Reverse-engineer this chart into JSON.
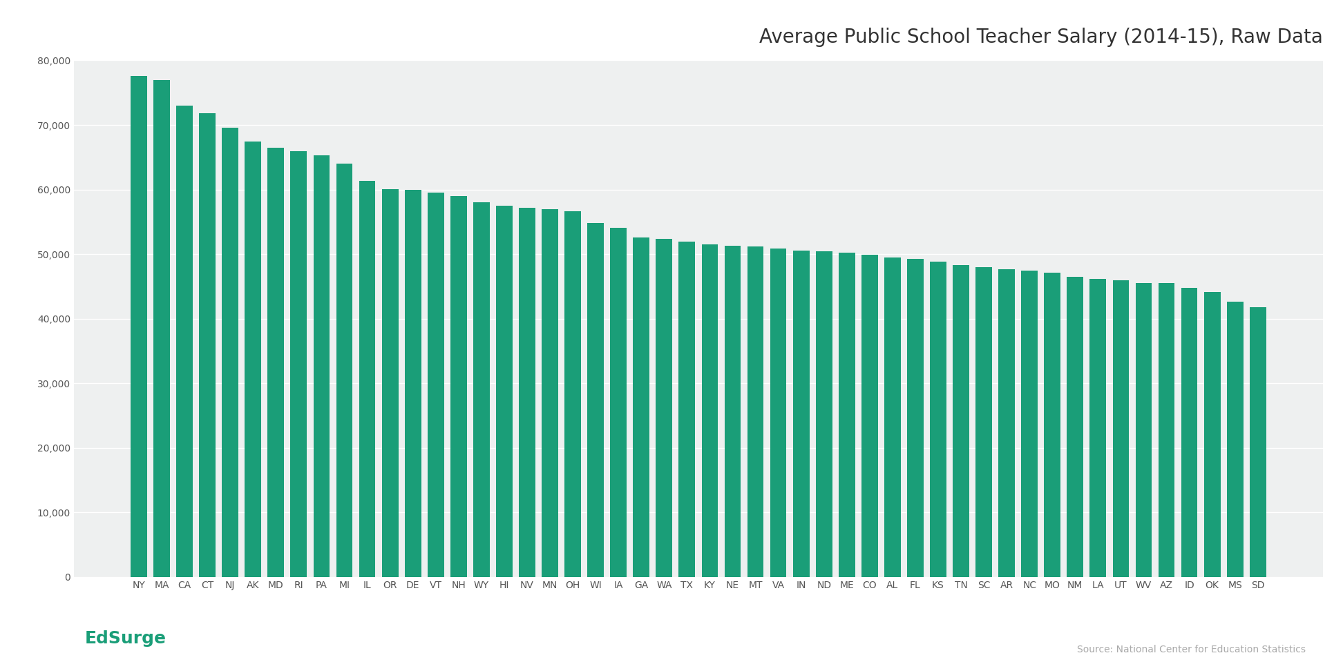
{
  "title": "Average Public School Teacher Salary (2014-15), Raw Data",
  "source_text": "Source: National Center for Education Statistics",
  "bar_color": "#1a9e78",
  "plot_bg_color": "#eef0f0",
  "fig_bg_color": "#ffffff",
  "categories": [
    "NY",
    "MA",
    "CA",
    "CT",
    "NJ",
    "AK",
    "MD",
    "RI",
    "PA",
    "MI",
    "IL",
    "OR",
    "DE",
    "VT",
    "NH",
    "WY",
    "HI",
    "NV",
    "MN",
    "OH",
    "WI",
    "IA",
    "GA",
    "WA",
    "TX",
    "KY",
    "NE",
    "MT",
    "VA",
    "IN",
    "ND",
    "ME",
    "CO",
    "AL",
    "FL",
    "KS",
    "TN",
    "SC",
    "AR",
    "NC",
    "MO",
    "NM",
    "LA",
    "UT",
    "WV",
    "AZ",
    "ID",
    "OK",
    "MS",
    "SD"
  ],
  "values": [
    77628,
    76981,
    72972,
    71842,
    69623,
    67443,
    66441,
    65985,
    65285,
    63970,
    61342,
    60100,
    59930,
    59556,
    58948,
    58014,
    57508,
    57135,
    57013,
    56616,
    54793,
    54125,
    52619,
    52373,
    51890,
    51469,
    51337,
    51165,
    50837,
    50548,
    50396,
    50190,
    49957,
    49490,
    49227,
    48881,
    48268,
    48000,
    47717,
    47413,
    47132,
    46490,
    46154,
    45940,
    45497,
    45477,
    44737,
    44128,
    42685,
    41838
  ],
  "ylim": [
    0,
    80000
  ],
  "yticks": [
    0,
    10000,
    20000,
    30000,
    40000,
    50000,
    60000,
    70000,
    80000
  ],
  "title_fontsize": 20,
  "tick_fontsize": 10,
  "grid_color": "#ffffff",
  "edsurge_color": "#1a9e78",
  "edsurge_text": "EdSurge",
  "tick_color": "#555555",
  "title_color": "#333333"
}
